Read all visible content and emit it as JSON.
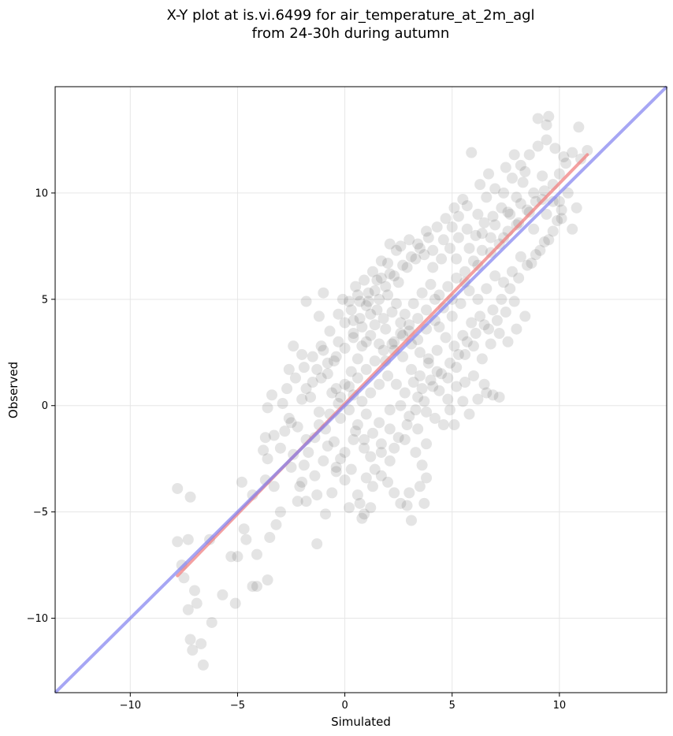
{
  "chart_data": {
    "type": "scatter",
    "title_line1": "X-Y plot at is.vi.6499 for air_temperature_at_2m_agl",
    "title_line2": "from 24-30h during autumn",
    "xlabel": "Simulated",
    "ylabel": "Observed",
    "xlim": [
      -13.5,
      15.0
    ],
    "ylim": [
      -13.5,
      15.0
    ],
    "xticks": [
      -10,
      -5,
      0,
      5,
      10
    ],
    "yticks": [
      -10,
      -5,
      0,
      5,
      10
    ],
    "xtick_labels": [
      "−10",
      "−5",
      "0",
      "5",
      "10"
    ],
    "ytick_labels": [
      "−10",
      "−5",
      "0",
      "5",
      "10"
    ],
    "grid": true,
    "colors": {
      "points": "#404040",
      "fit_line": "#f08080",
      "identity_line": "#8080f0"
    },
    "fit_line": {
      "x": [
        -7.8,
        11.3
      ],
      "y": [
        -8.0,
        11.8
      ]
    },
    "identity_line": {
      "x": [
        -13.5,
        15.0
      ],
      "y": [
        -13.5,
        15.0
      ]
    },
    "points": [
      [
        -7.8,
        -3.9
      ],
      [
        -7.2,
        -4.3
      ],
      [
        -7.8,
        -6.4
      ],
      [
        -7.3,
        -6.3
      ],
      [
        -6.3,
        -6.3
      ],
      [
        -7.6,
        -7.5
      ],
      [
        -7.5,
        -8.1
      ],
      [
        -7.0,
        -8.7
      ],
      [
        -7.3,
        -9.6
      ],
      [
        -6.9,
        -9.3
      ],
      [
        -7.2,
        -11.0
      ],
      [
        -7.1,
        -11.5
      ],
      [
        -6.7,
        -11.2
      ],
      [
        -6.6,
        -12.2
      ],
      [
        -6.2,
        -10.2
      ],
      [
        -5.7,
        -8.9
      ],
      [
        -5.1,
        -9.3
      ],
      [
        -5.3,
        -7.1
      ],
      [
        -5.0,
        -7.1
      ],
      [
        -4.7,
        -5.8
      ],
      [
        -4.6,
        -6.3
      ],
      [
        -4.8,
        -3.6
      ],
      [
        -4.3,
        -4.2
      ],
      [
        -4.1,
        -7.0
      ],
      [
        -4.3,
        -8.5
      ],
      [
        -4.1,
        -8.5
      ],
      [
        -3.6,
        -8.2
      ],
      [
        -3.5,
        -6.2
      ],
      [
        -3.2,
        -5.6
      ],
      [
        -3.0,
        -5.0
      ],
      [
        -3.7,
        -3.5
      ],
      [
        -3.3,
        -3.8
      ],
      [
        -3.6,
        -2.5
      ],
      [
        -3.8,
        -2.1
      ],
      [
        -3.7,
        -1.5
      ],
      [
        -3.3,
        -1.4
      ],
      [
        -3.0,
        -2.0
      ],
      [
        -2.8,
        -1.2
      ],
      [
        -2.5,
        -0.8
      ],
      [
        -3.4,
        0.5
      ],
      [
        -3.6,
        -0.1
      ],
      [
        -2.9,
        0.1
      ],
      [
        -2.6,
        1.7
      ],
      [
        -2.4,
        2.8
      ],
      [
        -2.0,
        0.3
      ],
      [
        -1.8,
        0.8
      ],
      [
        -2.0,
        2.4
      ],
      [
        -1.8,
        4.9
      ],
      [
        -1.2,
        4.2
      ],
      [
        -1.0,
        5.3
      ],
      [
        -1.3,
        1.7
      ],
      [
        -1.5,
        1.1
      ],
      [
        -1.0,
        2.6
      ],
      [
        -0.8,
        1.5
      ],
      [
        -0.5,
        2.1
      ],
      [
        -0.4,
        0.8
      ],
      [
        -1.2,
        -0.3
      ],
      [
        -0.7,
        -0.4
      ],
      [
        -0.3,
        0.1
      ],
      [
        -0.9,
        -1.1
      ],
      [
        -1.4,
        -1.5
      ],
      [
        -1.7,
        -2.2
      ],
      [
        -1.9,
        -2.8
      ],
      [
        -1.4,
        -3.3
      ],
      [
        -2.0,
        -3.6
      ],
      [
        -2.2,
        -4.5
      ],
      [
        -1.8,
        -4.5
      ],
      [
        -1.3,
        -4.2
      ],
      [
        -0.9,
        -5.1
      ],
      [
        -0.6,
        -4.1
      ],
      [
        -1.3,
        -6.5
      ],
      [
        -2.1,
        -3.8
      ],
      [
        -2.4,
        -2.3
      ],
      [
        -1.0,
        -2.6
      ],
      [
        -0.5,
        -1.7
      ],
      [
        -0.2,
        -2.5
      ],
      [
        0.0,
        -3.5
      ],
      [
        -0.4,
        -3.1
      ],
      [
        0.3,
        -3.0
      ],
      [
        0.6,
        -4.2
      ],
      [
        0.2,
        -4.8
      ],
      [
        0.8,
        -5.3
      ],
      [
        0.7,
        -4.6
      ],
      [
        0.9,
        -5.1
      ],
      [
        1.2,
        -4.8
      ],
      [
        1.3,
        -3.8
      ],
      [
        1.0,
        -3.4
      ],
      [
        1.4,
        -3.0
      ],
      [
        1.7,
        -3.3
      ],
      [
        2.0,
        -3.6
      ],
      [
        2.3,
        -4.1
      ],
      [
        2.6,
        -4.6
      ],
      [
        3.1,
        -5.4
      ],
      [
        2.9,
        -4.7
      ],
      [
        3.0,
        -4.1
      ],
      [
        3.5,
        -3.8
      ],
      [
        3.7,
        -4.6
      ],
      [
        3.8,
        -3.4
      ],
      [
        3.6,
        -2.8
      ],
      [
        3.3,
        -2.2
      ],
      [
        3.8,
        -1.8
      ],
      [
        3.4,
        -1.1
      ],
      [
        2.8,
        -1.6
      ],
      [
        2.3,
        -2.0
      ],
      [
        2.1,
        -2.6
      ],
      [
        1.7,
        -2.2
      ],
      [
        1.2,
        -2.4
      ],
      [
        0.9,
        -1.6
      ],
      [
        0.6,
        -0.9
      ],
      [
        1.0,
        -0.4
      ],
      [
        1.6,
        -0.8
      ],
      [
        2.1,
        -0.2
      ],
      [
        2.6,
        0.0
      ],
      [
        3.0,
        -0.5
      ],
      [
        3.4,
        0.4
      ],
      [
        3.8,
        -0.3
      ],
      [
        4.2,
        -0.6
      ],
      [
        4.6,
        -0.9
      ],
      [
        5.1,
        -0.9
      ],
      [
        4.9,
        -0.2
      ],
      [
        5.5,
        0.2
      ],
      [
        5.8,
        -0.4
      ],
      [
        6.2,
        0.3
      ],
      [
        6.6,
        0.6
      ],
      [
        6.9,
        0.5
      ],
      [
        7.2,
        0.4
      ],
      [
        6.5,
        1.0
      ],
      [
        6.0,
        1.4
      ],
      [
        5.6,
        1.1
      ],
      [
        5.2,
        1.8
      ],
      [
        4.8,
        1.3
      ],
      [
        4.3,
        1.6
      ],
      [
        3.9,
        2.0
      ],
      [
        3.5,
        1.4
      ],
      [
        3.1,
        1.7
      ],
      [
        2.7,
        2.3
      ],
      [
        2.3,
        2.6
      ],
      [
        1.9,
        2.1
      ],
      [
        1.6,
        2.9
      ],
      [
        1.2,
        3.3
      ],
      [
        0.8,
        2.8
      ],
      [
        0.4,
        3.4
      ],
      [
        0.0,
        3.9
      ],
      [
        -0.3,
        4.3
      ],
      [
        0.2,
        4.9
      ],
      [
        0.6,
        5.2
      ],
      [
        1.0,
        4.7
      ],
      [
        1.4,
        5.4
      ],
      [
        1.7,
        6.0
      ],
      [
        2.0,
        6.7
      ],
      [
        2.4,
        7.3
      ],
      [
        2.1,
        7.6
      ],
      [
        2.6,
        7.5
      ],
      [
        3.0,
        7.8
      ],
      [
        3.4,
        7.6
      ],
      [
        3.8,
        8.2
      ],
      [
        4.1,
        7.3
      ],
      [
        4.6,
        7.8
      ],
      [
        5.0,
        8.4
      ],
      [
        5.3,
        8.9
      ],
      [
        5.7,
        9.4
      ],
      [
        6.2,
        9.0
      ],
      [
        6.6,
        9.8
      ],
      [
        7.0,
        10.2
      ],
      [
        7.4,
        10.0
      ],
      [
        7.8,
        10.7
      ],
      [
        8.2,
        11.3
      ],
      [
        8.6,
        11.8
      ],
      [
        9.0,
        12.2
      ],
      [
        9.4,
        12.5
      ],
      [
        9.8,
        12.1
      ],
      [
        10.2,
        11.7
      ],
      [
        10.6,
        11.9
      ],
      [
        11.0,
        11.6
      ],
      [
        11.3,
        12.0
      ],
      [
        10.9,
        13.1
      ],
      [
        9.0,
        13.5
      ],
      [
        9.5,
        13.6
      ],
      [
        9.4,
        13.2
      ],
      [
        7.9,
        11.8
      ],
      [
        7.5,
        11.2
      ],
      [
        8.3,
        10.5
      ],
      [
        8.8,
        10.0
      ],
      [
        9.2,
        10.8
      ],
      [
        9.7,
        9.6
      ],
      [
        10.1,
        9.2
      ],
      [
        10.4,
        10.0
      ],
      [
        10.8,
        9.3
      ],
      [
        10.6,
        8.3
      ],
      [
        9.9,
        8.7
      ],
      [
        9.5,
        7.8
      ],
      [
        9.1,
        7.3
      ],
      [
        8.7,
        6.7
      ],
      [
        8.2,
        7.0
      ],
      [
        7.8,
        6.3
      ],
      [
        7.4,
        5.8
      ],
      [
        7.0,
        6.1
      ],
      [
        6.6,
        5.5
      ],
      [
        6.2,
        5.0
      ],
      [
        5.8,
        5.4
      ],
      [
        5.4,
        4.8
      ],
      [
        5.0,
        4.2
      ],
      [
        4.6,
        4.6
      ],
      [
        4.2,
        4.0
      ],
      [
        3.8,
        3.6
      ],
      [
        3.4,
        3.1
      ],
      [
        3.0,
        3.5
      ],
      [
        2.6,
        3.9
      ],
      [
        2.2,
        4.4
      ],
      [
        1.8,
        4.1
      ],
      [
        1.4,
        3.8
      ],
      [
        1.0,
        3.0
      ],
      [
        0.6,
        2.2
      ],
      [
        0.3,
        1.6
      ],
      [
        0.0,
        1.0
      ],
      [
        -0.2,
        0.4
      ],
      [
        0.4,
        0.5
      ],
      [
        0.8,
        0.2
      ],
      [
        1.2,
        0.6
      ],
      [
        1.6,
        1.0
      ],
      [
        2.0,
        1.4
      ],
      [
        2.4,
        1.0
      ],
      [
        2.8,
        0.6
      ],
      [
        3.2,
        1.1
      ],
      [
        3.6,
        0.8
      ],
      [
        4.0,
        1.2
      ],
      [
        4.4,
        0.7
      ],
      [
        4.8,
        0.3
      ],
      [
        5.2,
        0.9
      ],
      [
        5.6,
        2.4
      ],
      [
        6.0,
        2.8
      ],
      [
        6.4,
        2.2
      ],
      [
        6.8,
        2.9
      ],
      [
        7.2,
        3.4
      ],
      [
        7.6,
        3.0
      ],
      [
        8.0,
        3.6
      ],
      [
        8.4,
        4.2
      ],
      [
        7.9,
        4.9
      ],
      [
        7.5,
        4.4
      ],
      [
        7.1,
        4.0
      ],
      [
        6.7,
        3.6
      ],
      [
        6.3,
        4.2
      ],
      [
        5.9,
        3.9
      ],
      [
        5.5,
        3.3
      ],
      [
        5.1,
        2.8
      ],
      [
        4.7,
        3.2
      ],
      [
        4.3,
        2.6
      ],
      [
        3.9,
        2.2
      ],
      [
        3.5,
        2.5
      ],
      [
        3.1,
        2.9
      ],
      [
        2.7,
        3.3
      ],
      [
        2.3,
        3.0
      ],
      [
        1.9,
        3.6
      ],
      [
        1.5,
        4.5
      ],
      [
        1.1,
        4.9
      ],
      [
        0.7,
        4.1
      ],
      [
        0.3,
        4.5
      ],
      [
        -0.1,
        5.0
      ],
      [
        0.5,
        5.6
      ],
      [
        0.9,
        5.9
      ],
      [
        1.3,
        6.3
      ],
      [
        1.7,
        6.8
      ],
      [
        2.1,
        6.2
      ],
      [
        2.5,
        5.8
      ],
      [
        2.9,
        6.5
      ],
      [
        3.3,
        6.9
      ],
      [
        3.7,
        7.1
      ],
      [
        4.1,
        6.5
      ],
      [
        4.5,
        6.9
      ],
      [
        4.9,
        7.4
      ],
      [
        5.3,
        7.9
      ],
      [
        5.7,
        8.3
      ],
      [
        6.1,
        8.0
      ],
      [
        6.5,
        8.6
      ],
      [
        6.9,
        8.9
      ],
      [
        7.3,
        9.3
      ],
      [
        7.7,
        9.0
      ],
      [
        8.1,
        8.6
      ],
      [
        8.5,
        9.2
      ],
      [
        8.9,
        9.6
      ],
      [
        9.3,
        10.1
      ],
      [
        9.7,
        10.4
      ],
      [
        10.0,
        10.9
      ],
      [
        10.3,
        11.4
      ],
      [
        8.0,
        9.8
      ],
      [
        7.6,
        8.2
      ],
      [
        7.2,
        7.6
      ],
      [
        6.8,
        7.9
      ],
      [
        6.4,
        7.3
      ],
      [
        6.0,
        6.8
      ],
      [
        5.6,
        6.3
      ],
      [
        5.2,
        6.0
      ],
      [
        4.8,
        5.6
      ],
      [
        4.4,
        5.2
      ],
      [
        4.0,
        5.7
      ],
      [
        3.6,
        5.3
      ],
      [
        3.2,
        4.8
      ],
      [
        2.8,
        4.3
      ],
      [
        2.4,
        4.8
      ],
      [
        2.0,
        5.2
      ],
      [
        1.6,
        5.0
      ],
      [
        1.2,
        4.3
      ],
      [
        0.8,
        3.7
      ],
      [
        0.4,
        3.2
      ],
      [
        0.0,
        2.7
      ],
      [
        -0.4,
        2.3
      ],
      [
        -0.8,
        2.0
      ],
      [
        -1.1,
        1.3
      ],
      [
        -0.6,
        0.6
      ],
      [
        -0.2,
        -0.6
      ],
      [
        0.2,
        -0.2
      ],
      [
        0.5,
        -1.2
      ],
      [
        0.9,
        -2.0
      ],
      [
        1.3,
        -1.3
      ],
      [
        1.7,
        -1.8
      ],
      [
        2.1,
        -1.1
      ],
      [
        2.5,
        -1.5
      ],
      [
        2.9,
        -0.9
      ],
      [
        3.3,
        -0.2
      ],
      [
        3.7,
        0.2
      ],
      [
        4.1,
        0.9
      ],
      [
        4.5,
        1.5
      ],
      [
        4.9,
        2.0
      ],
      [
        5.3,
        2.4
      ],
      [
        5.7,
        3.0
      ],
      [
        6.1,
        3.4
      ],
      [
        6.5,
        3.8
      ],
      [
        6.9,
        4.5
      ],
      [
        7.3,
        5.0
      ],
      [
        7.7,
        5.5
      ],
      [
        8.1,
        6.0
      ],
      [
        8.5,
        6.6
      ],
      [
        8.9,
        7.1
      ],
      [
        9.3,
        7.7
      ],
      [
        9.7,
        8.2
      ],
      [
        10.1,
        8.8
      ],
      [
        5.9,
        11.9
      ],
      [
        6.3,
        10.4
      ],
      [
        6.7,
        10.9
      ],
      [
        5.5,
        9.7
      ],
      [
        5.1,
        9.3
      ],
      [
        4.7,
        8.8
      ],
      [
        4.3,
        8.4
      ],
      [
        3.9,
        7.9
      ],
      [
        3.5,
        7.4
      ],
      [
        3.1,
        7.0
      ],
      [
        2.7,
        6.6
      ],
      [
        2.3,
        6.1
      ],
      [
        1.9,
        5.6
      ],
      [
        1.5,
        5.9
      ],
      [
        1.1,
        5.3
      ],
      [
        0.7,
        4.9
      ],
      [
        0.4,
        4.0
      ],
      [
        -0.3,
        3.0
      ],
      [
        -0.7,
        3.5
      ],
      [
        -1.1,
        2.8
      ],
      [
        -1.5,
        2.3
      ],
      [
        -1.9,
        1.8
      ],
      [
        -2.3,
        1.3
      ],
      [
        -2.7,
        0.8
      ],
      [
        -1.6,
        0.4
      ],
      [
        -1.2,
        -0.9
      ],
      [
        -0.8,
        -1.9
      ],
      [
        -0.4,
        -2.9
      ],
      [
        0.0,
        -2.2
      ],
      [
        0.4,
        -1.6
      ],
      [
        -2.6,
        -0.6
      ],
      [
        -2.2,
        -1.0
      ],
      [
        -1.8,
        -1.6
      ],
      [
        -2.5,
        -2.9
      ],
      [
        4.4,
        3.7
      ],
      [
        5.0,
        5.0
      ],
      [
        5.6,
        5.8
      ],
      [
        6.2,
        6.6
      ],
      [
        6.8,
        7.2
      ],
      [
        7.4,
        7.9
      ],
      [
        8.0,
        8.5
      ],
      [
        8.6,
        9.1
      ],
      [
        9.2,
        9.7
      ],
      [
        4.2,
        5.0
      ],
      [
        3.8,
        4.5
      ],
      [
        3.4,
        4.1
      ],
      [
        3.0,
        3.8
      ],
      [
        2.6,
        3.4
      ],
      [
        2.2,
        2.9
      ],
      [
        1.8,
        2.6
      ],
      [
        1.4,
        2.1
      ],
      [
        1.0,
        1.7
      ],
      [
        0.6,
        1.3
      ],
      [
        0.2,
        0.9
      ],
      [
        5.2,
        6.9
      ],
      [
        5.8,
        7.4
      ],
      [
        6.4,
        8.1
      ],
      [
        7.0,
        8.5
      ],
      [
        7.6,
        9.1
      ],
      [
        8.2,
        9.5
      ],
      [
        8.8,
        8.3
      ],
      [
        9.4,
        9.0
      ],
      [
        10.0,
        9.6
      ],
      [
        8.4,
        11.0
      ]
    ]
  }
}
